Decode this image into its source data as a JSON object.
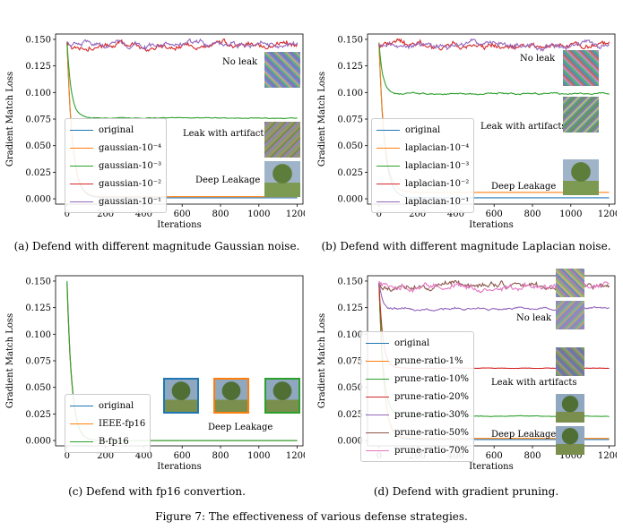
{
  "figure_caption": "Figure 7: The effectiveness of various defense strategies.",
  "colors": {
    "blue": "#1f77b4",
    "orange": "#ff7f0e",
    "green": "#2ca02c",
    "red": "#d62728",
    "purple": "#9467bd",
    "brown": "#8c564b",
    "pink": "#e377c2"
  },
  "panels": [
    {
      "id": "a",
      "caption": "(a) Defend with different magnitude Gaussian noise.",
      "annotations": [
        "No leak",
        "Leak with artifacts",
        "Deep Leakage"
      ],
      "chart_data": {
        "type": "line",
        "xlabel": "Iterations",
        "ylabel": "Gradient Match Loss",
        "xlim": [
          -60,
          1230
        ],
        "ylim": [
          -0.005,
          0.155
        ],
        "xticks": [
          "0",
          "200",
          "400",
          "600",
          "800",
          "1000",
          "1200"
        ],
        "yticks": [
          "0.000",
          "0.025",
          "0.050",
          "0.075",
          "0.100",
          "0.125",
          "0.150"
        ],
        "legend_position": "lower-left",
        "series": [
          {
            "name": "original",
            "color": "#1f77b4",
            "start": 0.147,
            "plateau": 0.001,
            "decay": 28,
            "noise": 0
          },
          {
            "name": "gaussian-10⁻⁴",
            "color": "#ff7f0e",
            "start": 0.147,
            "plateau": 0.002,
            "decay": 28,
            "noise": 0
          },
          {
            "name": "gaussian-10⁻³",
            "color": "#2ca02c",
            "start": 0.147,
            "plateau": 0.076,
            "decay": 22,
            "noise": 0.0004
          },
          {
            "name": "gaussian-10⁻²",
            "color": "#d62728",
            "start": 0.147,
            "plateau": 0.144,
            "decay": 10,
            "noise": 0.003
          },
          {
            "name": "gaussian-10⁻¹",
            "color": "#9467bd",
            "start": 0.147,
            "plateau": 0.145,
            "decay": 10,
            "noise": 0.003
          }
        ]
      }
    },
    {
      "id": "b",
      "caption": "(b) Defend with different magnitude Laplacian noise.",
      "annotations": [
        "No leak",
        "Leak with artifacts",
        "Deep Leakage"
      ],
      "chart_data": {
        "type": "line",
        "xlabel": "Iterations",
        "ylabel": "Gradient Match Loss",
        "xlim": [
          -60,
          1230
        ],
        "ylim": [
          -0.005,
          0.155
        ],
        "xticks": [
          "0",
          "200",
          "400",
          "600",
          "800",
          "1000",
          "1200"
        ],
        "yticks": [
          "0.000",
          "0.025",
          "0.050",
          "0.075",
          "0.100",
          "0.125",
          "0.150"
        ],
        "legend_position": "lower-left",
        "series": [
          {
            "name": "original",
            "color": "#1f77b4",
            "start": 0.147,
            "plateau": 0.001,
            "decay": 28,
            "noise": 0
          },
          {
            "name": "laplacian-10⁻⁴",
            "color": "#ff7f0e",
            "start": 0.147,
            "plateau": 0.006,
            "decay": 28,
            "noise": 0
          },
          {
            "name": "laplacian-10⁻³",
            "color": "#2ca02c",
            "start": 0.147,
            "plateau": 0.099,
            "decay": 20,
            "noise": 0.0008
          },
          {
            "name": "laplacian-10⁻²",
            "color": "#d62728",
            "start": 0.147,
            "plateau": 0.145,
            "decay": 10,
            "noise": 0.003
          },
          {
            "name": "laplacian-10⁻¹",
            "color": "#9467bd",
            "start": 0.147,
            "plateau": 0.144,
            "decay": 10,
            "noise": 0.003
          }
        ]
      }
    },
    {
      "id": "c",
      "caption": "(c) Defend with fp16 convertion.",
      "annotations": [
        "Deep Leakage"
      ],
      "chart_data": {
        "type": "line",
        "xlabel": "Iterations",
        "ylabel": "Gradient Match Loss",
        "xlim": [
          -60,
          1230
        ],
        "ylim": [
          -0.005,
          0.155
        ],
        "xticks": [
          "0",
          "200",
          "400",
          "600",
          "800",
          "1000",
          "1200"
        ],
        "yticks": [
          "0.000",
          "0.025",
          "0.050",
          "0.075",
          "0.100",
          "0.125",
          "0.150"
        ],
        "legend_position": "lower-left",
        "series": [
          {
            "name": "original",
            "color": "#1f77b4",
            "start": 0.148,
            "plateau": 0.0,
            "decay": 25,
            "noise": 0
          },
          {
            "name": "IEEE-fp16",
            "color": "#ff7f0e",
            "start": 0.146,
            "plateau": 0.0,
            "decay": 25,
            "noise": 0
          },
          {
            "name": "B-fp16",
            "color": "#2ca02c",
            "start": 0.15,
            "plateau": 0.0,
            "decay": 25,
            "noise": 0
          }
        ]
      }
    },
    {
      "id": "d",
      "caption": "(d) Defend with gradient pruning.",
      "annotations": [
        "No leak",
        "Leak with artifacts",
        "Deep Leakage"
      ],
      "chart_data": {
        "type": "line",
        "xlabel": "Iterations",
        "ylabel": "Gradient Match Loss",
        "xlim": [
          -60,
          1230
        ],
        "ylim": [
          -0.005,
          0.155
        ],
        "xticks": [
          "0",
          "200",
          "400",
          "600",
          "800",
          "1000",
          "1200"
        ],
        "yticks": [
          "0.000",
          "0.025",
          "0.050",
          "0.075",
          "0.100",
          "0.125",
          "0.150"
        ],
        "legend_position": "lower-left",
        "series": [
          {
            "name": "original",
            "color": "#1f77b4",
            "start": 0.148,
            "plateau": 0.001,
            "decay": 25,
            "noise": 0
          },
          {
            "name": "prune-ratio-1%",
            "color": "#ff7f0e",
            "start": 0.148,
            "plateau": 0.002,
            "decay": 25,
            "noise": 0
          },
          {
            "name": "prune-ratio-10%",
            "color": "#2ca02c",
            "start": 0.148,
            "plateau": 0.023,
            "decay": 22,
            "noise": 0.0003
          },
          {
            "name": "prune-ratio-20%",
            "color": "#d62728",
            "start": 0.148,
            "plateau": 0.068,
            "decay": 20,
            "noise": 0.0002
          },
          {
            "name": "prune-ratio-30%",
            "color": "#9467bd",
            "start": 0.148,
            "plateau": 0.124,
            "decay": 18,
            "noise": 0.0012
          },
          {
            "name": "prune-ratio-50%",
            "color": "#8c564b",
            "start": 0.148,
            "plateau": 0.145,
            "decay": 10,
            "noise": 0.003
          },
          {
            "name": "prune-ratio-70%",
            "color": "#e377c2",
            "start": 0.148,
            "plateau": 0.145,
            "decay": 10,
            "noise": 0.003
          }
        ]
      }
    }
  ]
}
